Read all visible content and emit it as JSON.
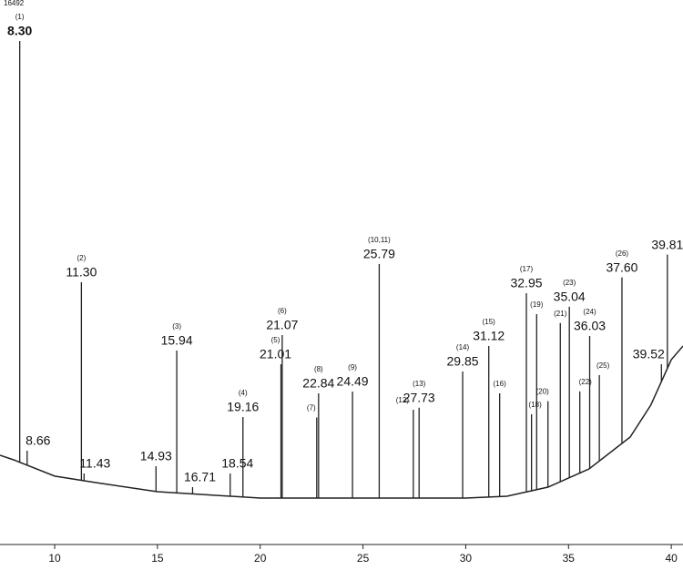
{
  "chart_data": {
    "type": "chromatogram",
    "xlim": [
      7.34,
      40.57
    ],
    "xticks": [
      10,
      15,
      20,
      25,
      30,
      35,
      40
    ],
    "ylim": [
      0,
      16492
    ],
    "yticks": [
      16492
    ],
    "x": [
      8.3,
      8.66,
      11.3,
      11.43,
      14.93,
      15.94,
      16.71,
      18.54,
      19.16,
      21.01,
      21.07,
      22.75,
      22.84,
      24.49,
      25.79,
      27.45,
      27.73,
      29.85,
      31.12,
      31.65,
      32.95,
      33.2,
      33.45,
      34.0,
      34.6,
      35.04,
      35.55,
      36.03,
      36.5,
      37.6,
      39.52,
      39.81
    ],
    "x_labels": [
      "8.30",
      "8.66",
      "11.30",
      "11.43",
      "14.93",
      "15.94",
      "16.71",
      "18.54",
      "19.16",
      "21.01",
      "21.07",
      null,
      "22.84",
      "24.49",
      "25.79",
      null,
      "27.73",
      "29.85",
      "31.12",
      null,
      "32.95",
      null,
      null,
      null,
      null,
      "35.04",
      null,
      "36.03",
      null,
      "37.60",
      "39.52",
      "39.81"
    ],
    "peak_numbers": [
      "(1)",
      null,
      "(2)",
      null,
      null,
      "(3)",
      null,
      null,
      "(4)",
      "(5)",
      "(6)",
      "(7)",
      "(8)",
      "(9)",
      "(10,11)",
      "(12)",
      "(13)",
      "(14)",
      "(15)",
      "(16)",
      "(17)",
      "(18)",
      "(19)",
      "(20)",
      "(21)",
      "(23)",
      "(22)",
      "(24)",
      "(25)",
      "(26)",
      null,
      null
    ],
    "values": [
      15457,
      2879,
      8050,
      2180,
      2404,
      5953,
      1761,
      2180,
      3913,
      5534,
      6428,
      3900,
      4640,
      4696,
      8609,
      4137,
      4200,
      5310,
      6093,
      4640,
      7714,
      4000,
      7071,
      4400,
      6800,
      7300,
      4700,
      6400,
      5200,
      8200,
      5534,
      8900
    ],
    "baseline": {
      "x": [
        7.34,
        8,
        10,
        12,
        15,
        20,
        25,
        30,
        32,
        34,
        36,
        38,
        39,
        40,
        40.57
      ],
      "values": [
        2739,
        2600,
        2100,
        1900,
        1621,
        1425,
        1425,
        1425,
        1481,
        1761,
        2320,
        3298,
        4276,
        5674,
        6093
      ]
    },
    "color": "#222222"
  }
}
